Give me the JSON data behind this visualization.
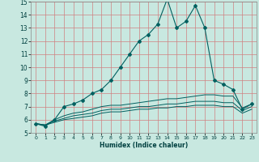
{
  "xlabel": "Humidex (Indice chaleur)",
  "background_color": "#c8e8e0",
  "grid_color": "#d08080",
  "line_color": "#006060",
  "xlim": [
    -0.5,
    23.5
  ],
  "ylim": [
    5,
    15
  ],
  "x_ticks": [
    0,
    1,
    2,
    3,
    4,
    5,
    6,
    7,
    8,
    9,
    10,
    11,
    12,
    13,
    14,
    15,
    16,
    17,
    18,
    19,
    20,
    21,
    22,
    23
  ],
  "y_ticks": [
    5,
    6,
    7,
    8,
    9,
    10,
    11,
    12,
    13,
    14,
    15
  ],
  "series1_x": [
    0,
    1,
    2,
    3,
    4,
    5,
    6,
    7,
    8,
    9,
    10,
    11,
    12,
    13,
    14,
    15,
    16,
    17,
    18,
    19,
    20,
    21,
    22,
    23
  ],
  "series1_y": [
    5.7,
    5.5,
    6.0,
    7.0,
    7.2,
    7.5,
    8.0,
    8.3,
    9.0,
    10.0,
    11.0,
    12.0,
    12.5,
    13.3,
    15.2,
    13.0,
    13.5,
    14.7,
    13.0,
    9.0,
    8.7,
    8.3,
    6.8,
    7.2
  ],
  "series2_x": [
    0,
    1,
    2,
    3,
    4,
    5,
    6,
    7,
    8,
    9,
    10,
    11,
    12,
    13,
    14,
    15,
    16,
    17,
    18,
    19,
    20,
    21,
    22,
    23
  ],
  "series2_y": [
    5.7,
    5.6,
    6.0,
    6.3,
    6.5,
    6.6,
    6.8,
    7.0,
    7.1,
    7.1,
    7.2,
    7.3,
    7.4,
    7.5,
    7.6,
    7.6,
    7.7,
    7.8,
    7.9,
    7.9,
    7.8,
    7.8,
    6.9,
    7.2
  ],
  "series3_x": [
    0,
    1,
    2,
    3,
    4,
    5,
    6,
    7,
    8,
    9,
    10,
    11,
    12,
    13,
    14,
    15,
    16,
    17,
    18,
    19,
    20,
    21,
    22,
    23
  ],
  "series3_y": [
    5.7,
    5.6,
    5.9,
    6.1,
    6.3,
    6.4,
    6.5,
    6.7,
    6.8,
    6.8,
    6.9,
    7.0,
    7.0,
    7.1,
    7.2,
    7.2,
    7.3,
    7.4,
    7.4,
    7.4,
    7.3,
    7.3,
    6.7,
    7.0
  ],
  "series4_x": [
    0,
    1,
    2,
    3,
    4,
    5,
    6,
    7,
    8,
    9,
    10,
    11,
    12,
    13,
    14,
    15,
    16,
    17,
    18,
    19,
    20,
    21,
    22,
    23
  ],
  "series4_y": [
    5.7,
    5.6,
    5.8,
    6.0,
    6.1,
    6.2,
    6.3,
    6.5,
    6.6,
    6.6,
    6.7,
    6.8,
    6.8,
    6.9,
    6.9,
    7.0,
    7.0,
    7.1,
    7.1,
    7.1,
    7.0,
    7.0,
    6.5,
    6.8
  ]
}
